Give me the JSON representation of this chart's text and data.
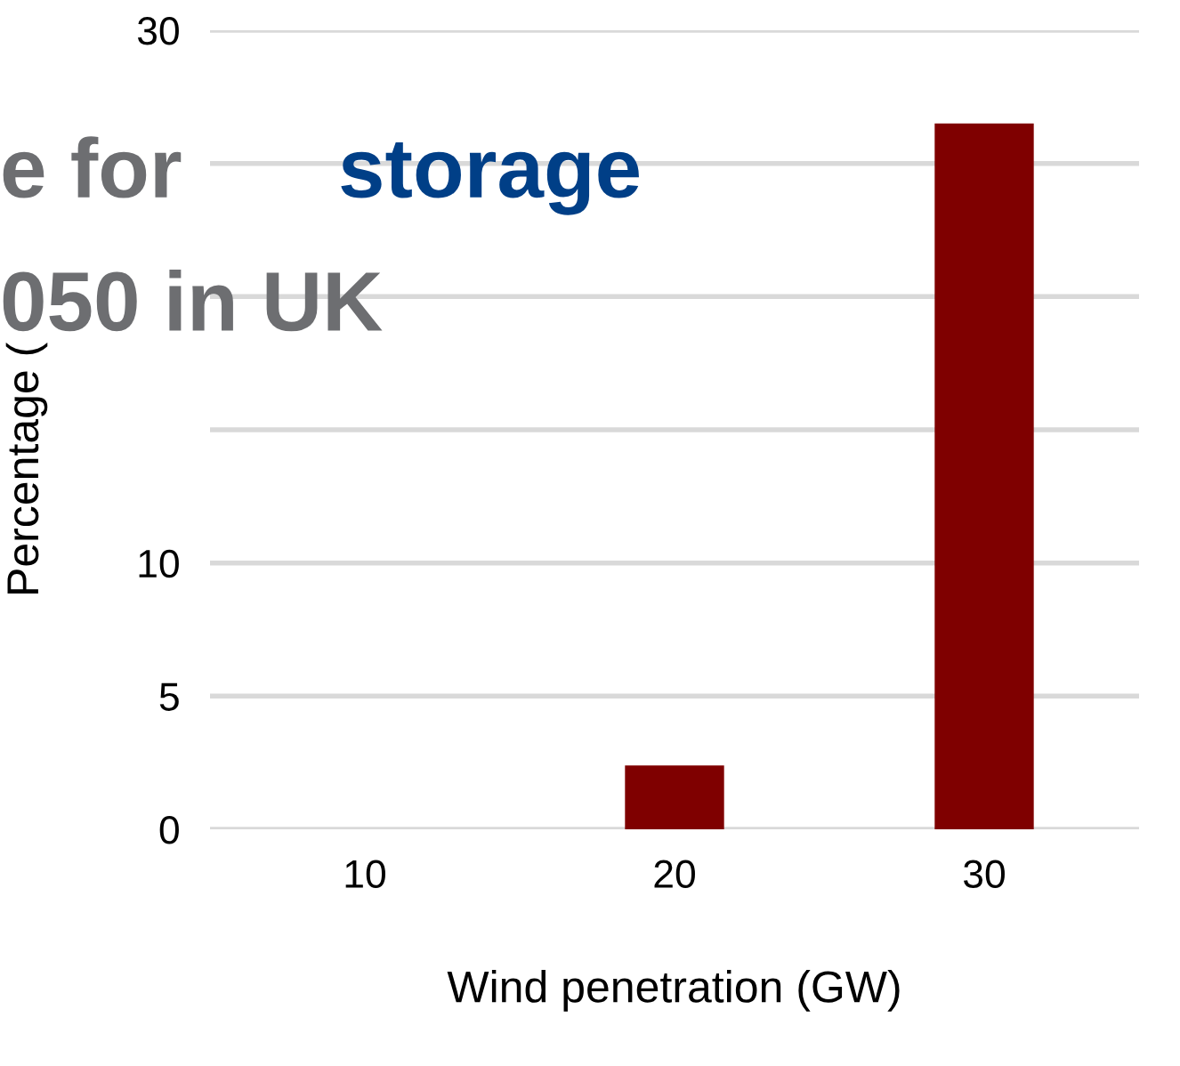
{
  "chart_data": {
    "type": "bar",
    "categories": [
      "10",
      "20",
      "30"
    ],
    "values": [
      0,
      2.4,
      26.5
    ],
    "color": "#7f0000",
    "xlabel": "Wind penetration (GW)",
    "ylabel": "Percentage (",
    "ylim": [
      0,
      30
    ],
    "yticks": [
      0,
      5,
      10,
      {
        "value": 15,
        "label": null
      },
      {
        "value": 20,
        "label": null
      },
      {
        "value": 25,
        "label": null
      },
      30
    ],
    "grid": "y",
    "annotations": [
      "e for",
      "storage",
      "050 in UK"
    ]
  }
}
